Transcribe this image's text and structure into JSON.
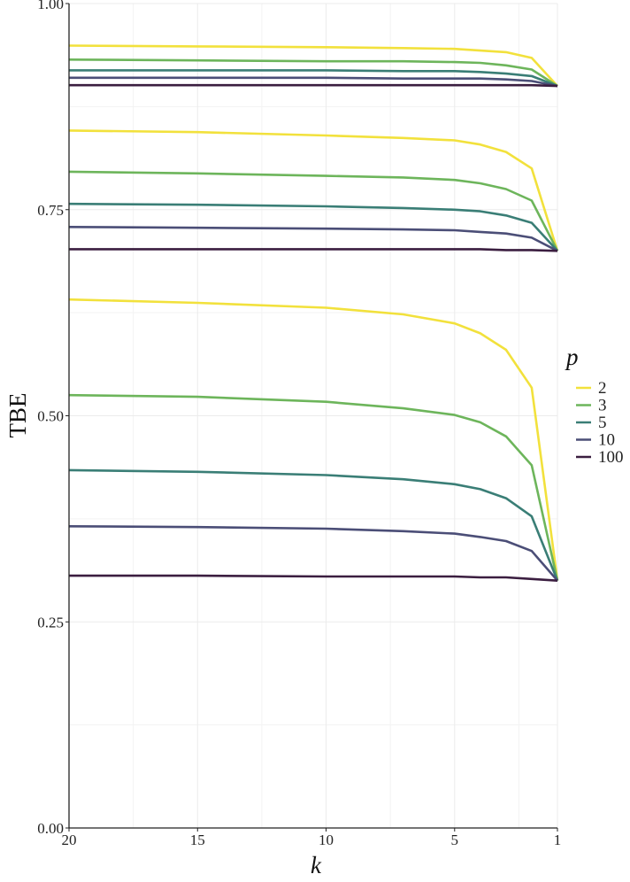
{
  "chart_data": {
    "type": "line",
    "title": "",
    "xlabel": "k",
    "ylabel": "TBE",
    "xlim": [
      20,
      1
    ],
    "x_reversed": true,
    "ylim": [
      0,
      1
    ],
    "x_ticks": [
      "20",
      "15",
      "10",
      "5",
      "1"
    ],
    "x_tick_values": [
      20,
      15,
      10,
      5,
      1
    ],
    "y_ticks": [
      "0.00",
      "0.25",
      "0.50",
      "0.75",
      "1.00"
    ],
    "y_tick_values": [
      0,
      0.25,
      0.5,
      0.75,
      1
    ],
    "grid": true,
    "legend": {
      "title": "p",
      "placement": "right",
      "entries": [
        "2",
        "3",
        "5",
        "10",
        "100"
      ]
    },
    "colors": {
      "2": "#F2E13C",
      "3": "#6DB55B",
      "5": "#3A7E76",
      "10": "#4B4E77",
      "100": "#3B1E40"
    },
    "x": [
      20,
      15,
      10,
      7,
      5,
      4,
      3,
      2,
      1
    ],
    "series": [
      {
        "name": "2",
        "group": 1,
        "values": [
          0.949,
          0.948,
          0.947,
          0.946,
          0.945,
          0.943,
          0.941,
          0.934,
          0.9
        ]
      },
      {
        "name": "3",
        "group": 1,
        "values": [
          0.932,
          0.931,
          0.93,
          0.93,
          0.929,
          0.928,
          0.925,
          0.92,
          0.9
        ]
      },
      {
        "name": "5",
        "group": 1,
        "values": [
          0.919,
          0.919,
          0.919,
          0.918,
          0.918,
          0.917,
          0.915,
          0.912,
          0.9
        ]
      },
      {
        "name": "10",
        "group": 1,
        "values": [
          0.91,
          0.91,
          0.91,
          0.909,
          0.909,
          0.909,
          0.908,
          0.906,
          0.9
        ]
      },
      {
        "name": "100",
        "group": 1,
        "values": [
          0.901,
          0.901,
          0.901,
          0.901,
          0.901,
          0.901,
          0.901,
          0.901,
          0.9
        ]
      },
      {
        "name": "2",
        "group": 2,
        "values": [
          0.846,
          0.844,
          0.84,
          0.837,
          0.834,
          0.829,
          0.82,
          0.8,
          0.7
        ]
      },
      {
        "name": "3",
        "group": 2,
        "values": [
          0.796,
          0.794,
          0.791,
          0.789,
          0.786,
          0.782,
          0.775,
          0.761,
          0.7
        ]
      },
      {
        "name": "5",
        "group": 2,
        "values": [
          0.757,
          0.756,
          0.754,
          0.752,
          0.75,
          0.748,
          0.743,
          0.734,
          0.7
        ]
      },
      {
        "name": "10",
        "group": 2,
        "values": [
          0.729,
          0.728,
          0.727,
          0.726,
          0.725,
          0.723,
          0.721,
          0.716,
          0.7
        ]
      },
      {
        "name": "100",
        "group": 2,
        "values": [
          0.702,
          0.702,
          0.702,
          0.702,
          0.702,
          0.702,
          0.701,
          0.701,
          0.7
        ]
      },
      {
        "name": "2",
        "group": 3,
        "values": [
          0.641,
          0.637,
          0.631,
          0.623,
          0.612,
          0.6,
          0.58,
          0.534,
          0.3
        ]
      },
      {
        "name": "3",
        "group": 3,
        "values": [
          0.525,
          0.523,
          0.517,
          0.509,
          0.501,
          0.492,
          0.475,
          0.44,
          0.3
        ]
      },
      {
        "name": "5",
        "group": 3,
        "values": [
          0.434,
          0.432,
          0.428,
          0.423,
          0.417,
          0.411,
          0.4,
          0.378,
          0.3
        ]
      },
      {
        "name": "10",
        "group": 3,
        "values": [
          0.366,
          0.365,
          0.363,
          0.36,
          0.357,
          0.353,
          0.348,
          0.336,
          0.3
        ]
      },
      {
        "name": "100",
        "group": 3,
        "values": [
          0.306,
          0.306,
          0.305,
          0.305,
          0.305,
          0.304,
          0.304,
          0.302,
          0.3
        ]
      }
    ]
  }
}
